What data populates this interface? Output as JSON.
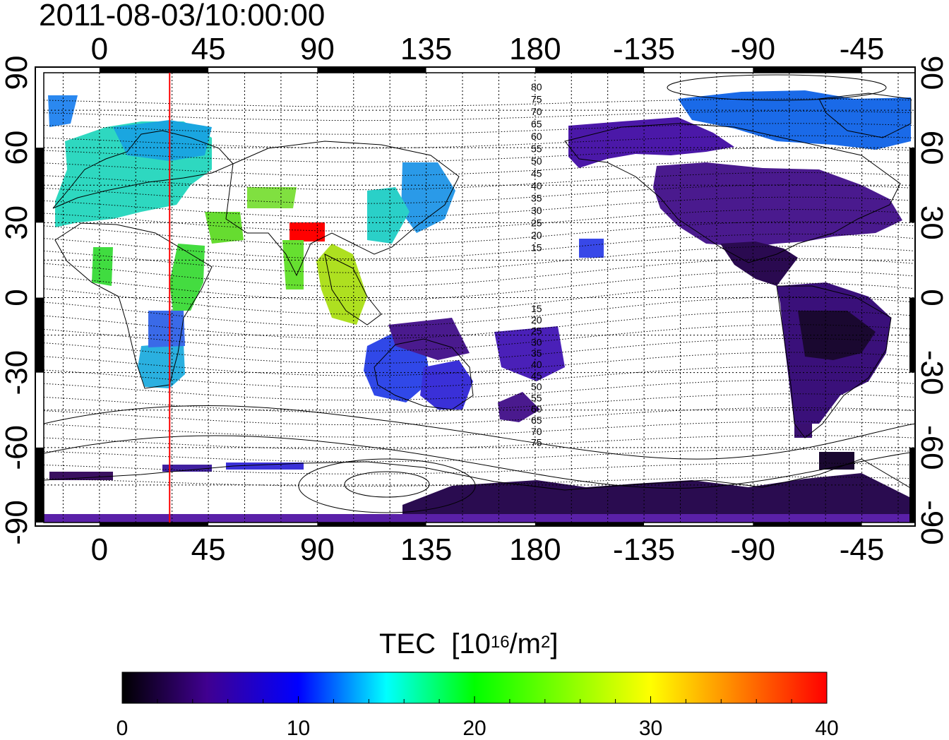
{
  "timestamp": "2011-08-03/10:00:00",
  "map": {
    "lon_ticks": [
      0,
      45,
      90,
      135,
      180,
      -135,
      -90,
      -45
    ],
    "lat_ticks": [
      90,
      60,
      30,
      0,
      -30,
      -60,
      -90
    ],
    "lon_range": [
      -23,
      337
    ],
    "lat_range": [
      -90,
      90
    ],
    "grid": "dotted",
    "marker_longitude": 29,
    "marker_color": "#ff0000",
    "mag_lat_labels_north": [
      "80",
      "75",
      "70",
      "65",
      "60",
      "55",
      "50",
      "45",
      "40",
      "35",
      "30",
      "25",
      "20",
      "15"
    ],
    "mag_lat_labels_south": [
      "15",
      "20",
      "25",
      "30",
      "35",
      "40",
      "45",
      "50",
      "55",
      "60",
      "65",
      "70",
      "75"
    ]
  },
  "colorbar": {
    "title": "TEC",
    "unit_base": "10",
    "unit_exp": "16",
    "unit_mid": "/m",
    "unit_exp2": "2",
    "min": 0,
    "max": 40,
    "ticks": [
      "0",
      "10",
      "20",
      "30",
      "40"
    ],
    "colors": [
      "#000000",
      "#400090",
      "#0000ff",
      "#00ffff",
      "#00ff00",
      "#ffff00",
      "#ff0000"
    ]
  }
}
